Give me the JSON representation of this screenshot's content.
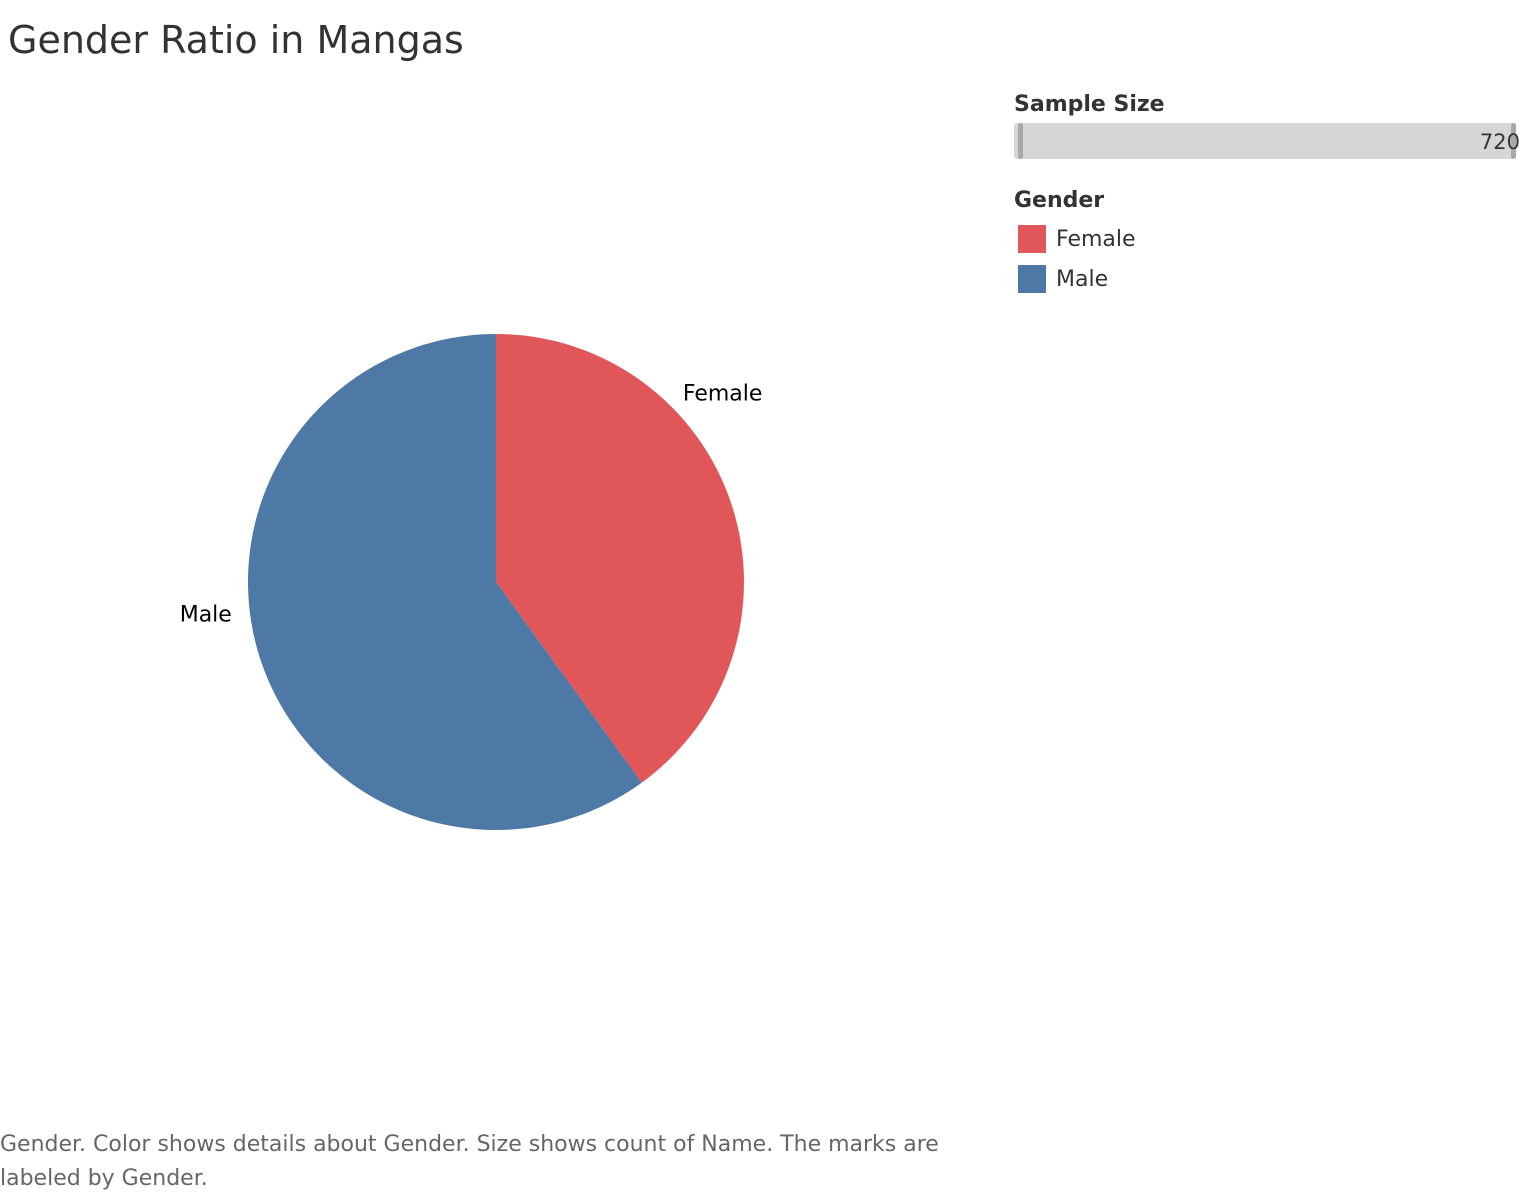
{
  "title": "Gender Ratio in Mangas",
  "filter": {
    "heading": "Sample Size",
    "max_value": "720"
  },
  "legend": {
    "heading": "Gender",
    "items": [
      {
        "label": "Female",
        "color": "#e15759"
      },
      {
        "label": "Male",
        "color": "#4e79a7"
      }
    ]
  },
  "caption": "Gender.  Color shows details about Gender.  Size shows count of Name.  The marks are labeled by Gender.",
  "chart_data": {
    "type": "pie",
    "categories": [
      "Female",
      "Male"
    ],
    "values": [
      288,
      432
    ],
    "colors": [
      "#e15759",
      "#4e79a7"
    ],
    "total": 720,
    "start": "12 o'clock, clockwise"
  }
}
